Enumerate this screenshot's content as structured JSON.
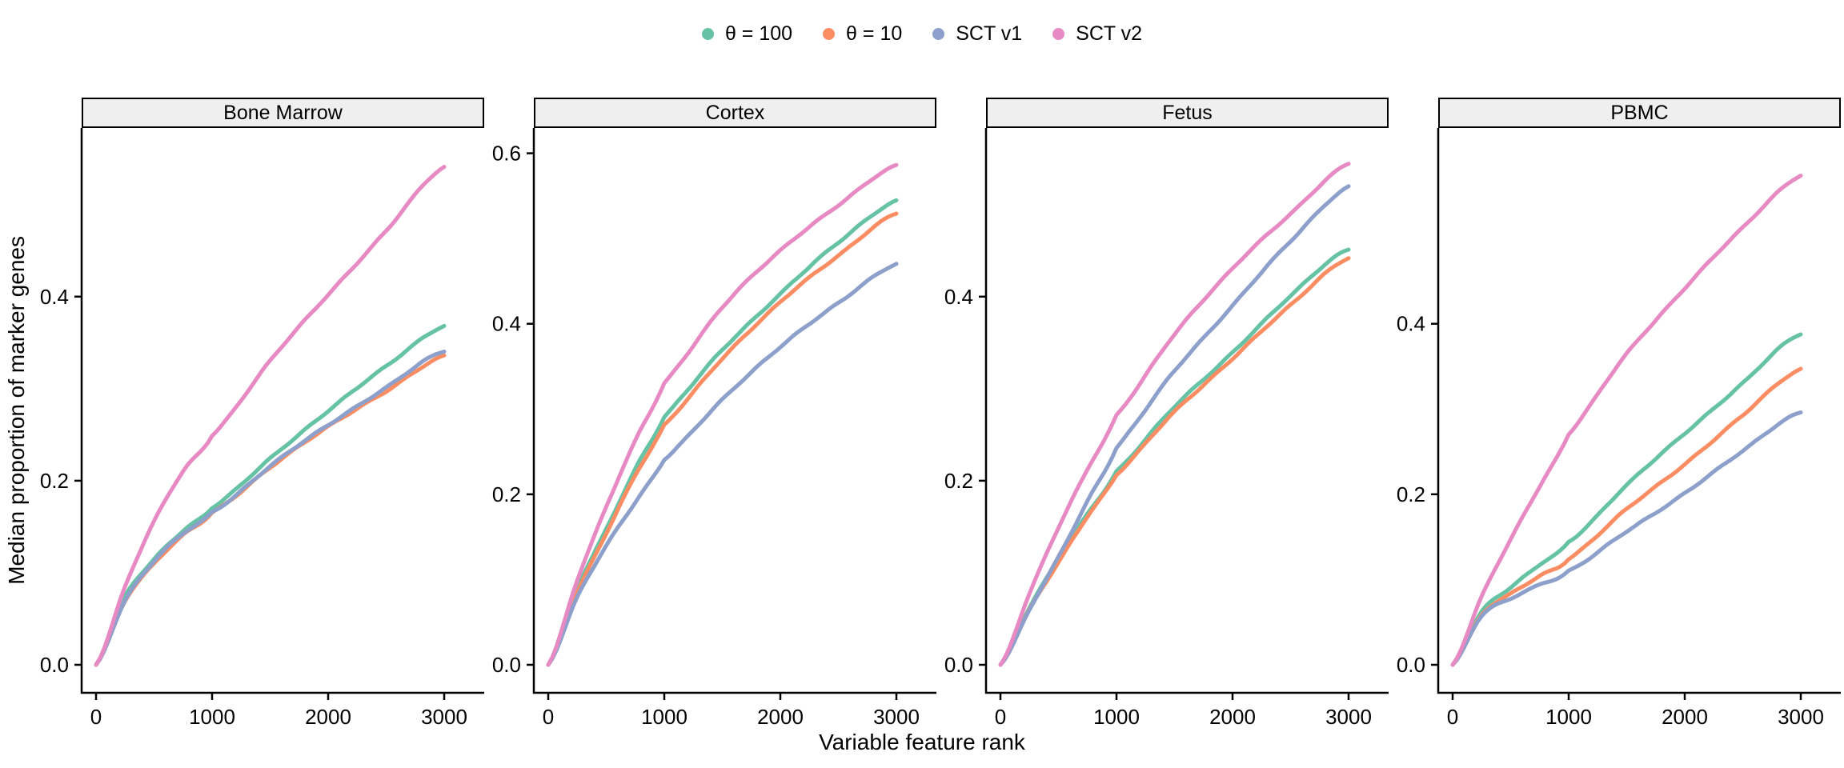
{
  "legend": {
    "items": [
      {
        "label": "θ = 100",
        "color": "#66C2A5"
      },
      {
        "label": "θ = 10",
        "color": "#FC8D62"
      },
      {
        "label": "SCT v1",
        "color": "#8DA0CB"
      },
      {
        "label": "SCT v2",
        "color": "#E78AC3"
      }
    ]
  },
  "chart_data": {
    "type": "line",
    "title": "",
    "xlabel": "Variable feature rank",
    "ylabel": "Median proportion of marker genes",
    "legend_position": "top",
    "grid": "off",
    "x": [
      0,
      250,
      500,
      750,
      1000,
      1500,
      2000,
      2500,
      3000
    ],
    "xlim": [
      0,
      3000
    ],
    "x_tick_values": [
      0,
      1000,
      2000,
      3000
    ],
    "x_tick_labels": [
      "0",
      "1000",
      "2000",
      "3000"
    ],
    "facets": [
      {
        "label": "Bone Marrow",
        "ylim": [
          0,
          0.578
        ],
        "y_tick_values": [
          0,
          0.2,
          0.4
        ],
        "y_tick_labels": [
          "0.0",
          "0.2",
          "0.4"
        ],
        "series": [
          {
            "name": "θ = 100",
            "color": "#66C2A5",
            "values": [
              0,
              0.075,
              0.115,
              0.145,
              0.17,
              0.225,
              0.275,
              0.325,
              0.368
            ]
          },
          {
            "name": "θ = 10",
            "color": "#FC8D62",
            "values": [
              0,
              0.07,
              0.11,
              0.14,
              0.165,
              0.215,
              0.258,
              0.298,
              0.335
            ]
          },
          {
            "name": "SCT v1",
            "color": "#8DA0CB",
            "values": [
              0,
              0.07,
              0.112,
              0.142,
              0.166,
              0.216,
              0.26,
              0.302,
              0.34
            ]
          },
          {
            "name": "SCT v2",
            "color": "#E78AC3",
            "values": [
              0,
              0.085,
              0.155,
              0.21,
              0.25,
              0.33,
              0.402,
              0.472,
              0.54
            ]
          }
        ]
      },
      {
        "label": "Cortex",
        "ylim": [
          0,
          0.624
        ],
        "y_tick_values": [
          0,
          0.2,
          0.4,
          0.6
        ],
        "y_tick_labels": [
          "0.0",
          "0.2",
          "0.4",
          "0.6"
        ],
        "series": [
          {
            "name": "θ = 100",
            "color": "#66C2A5",
            "values": [
              0,
              0.09,
              0.16,
              0.23,
              0.29,
              0.37,
              0.435,
              0.495,
              0.545
            ]
          },
          {
            "name": "θ = 10",
            "color": "#FC8D62",
            "values": [
              0,
              0.085,
              0.155,
              0.222,
              0.28,
              0.36,
              0.425,
              0.48,
              0.53
            ]
          },
          {
            "name": "SCT v1",
            "color": "#8DA0CB",
            "values": [
              0,
              0.08,
              0.14,
              0.19,
              0.24,
              0.312,
              0.372,
              0.425,
              0.47
            ]
          },
          {
            "name": "SCT v2",
            "color": "#E78AC3",
            "values": [
              0,
              0.1,
              0.185,
              0.262,
              0.33,
              0.42,
              0.485,
              0.54,
              0.585
            ]
          }
        ]
      },
      {
        "label": "Fetus",
        "ylim": [
          0,
          0.578
        ],
        "y_tick_values": [
          0,
          0.2,
          0.4
        ],
        "y_tick_labels": [
          "0.0",
          "0.2",
          "0.4"
        ],
        "series": [
          {
            "name": "θ = 100",
            "color": "#66C2A5",
            "values": [
              0,
              0.062,
              0.115,
              0.165,
              0.21,
              0.28,
              0.34,
              0.4,
              0.452
            ]
          },
          {
            "name": "θ = 10",
            "color": "#FC8D62",
            "values": [
              0,
              0.06,
              0.112,
              0.162,
              0.206,
              0.275,
              0.333,
              0.39,
              0.443
            ]
          },
          {
            "name": "SCT v1",
            "color": "#8DA0CB",
            "values": [
              0,
              0.06,
              0.118,
              0.178,
              0.235,
              0.32,
              0.39,
              0.46,
              0.52
            ]
          },
          {
            "name": "SCT v2",
            "color": "#E78AC3",
            "values": [
              0,
              0.078,
              0.15,
              0.212,
              0.27,
              0.36,
              0.43,
              0.49,
              0.545
            ]
          }
        ]
      },
      {
        "label": "PBMC",
        "ylim": [
          0,
          0.624
        ],
        "y_tick_values": [
          0,
          0.2,
          0.4
        ],
        "y_tick_labels": [
          "0.0",
          "0.2",
          "0.4"
        ],
        "series": [
          {
            "name": "θ = 100",
            "color": "#66C2A5",
            "values": [
              0,
              0.062,
              0.09,
              0.118,
              0.145,
              0.21,
              0.272,
              0.33,
              0.388
            ]
          },
          {
            "name": "θ = 10",
            "color": "#FC8D62",
            "values": [
              0,
              0.058,
              0.083,
              0.105,
              0.125,
              0.182,
              0.236,
              0.292,
              0.347
            ]
          },
          {
            "name": "SCT v1",
            "color": "#8DA0CB",
            "values": [
              0,
              0.057,
              0.078,
              0.095,
              0.11,
              0.156,
              0.202,
              0.25,
              0.297
            ]
          },
          {
            "name": "SCT v2",
            "color": "#E78AC3",
            "values": [
              0,
              0.08,
              0.148,
              0.21,
              0.27,
              0.365,
              0.442,
              0.512,
              0.575
            ]
          }
        ]
      }
    ]
  }
}
